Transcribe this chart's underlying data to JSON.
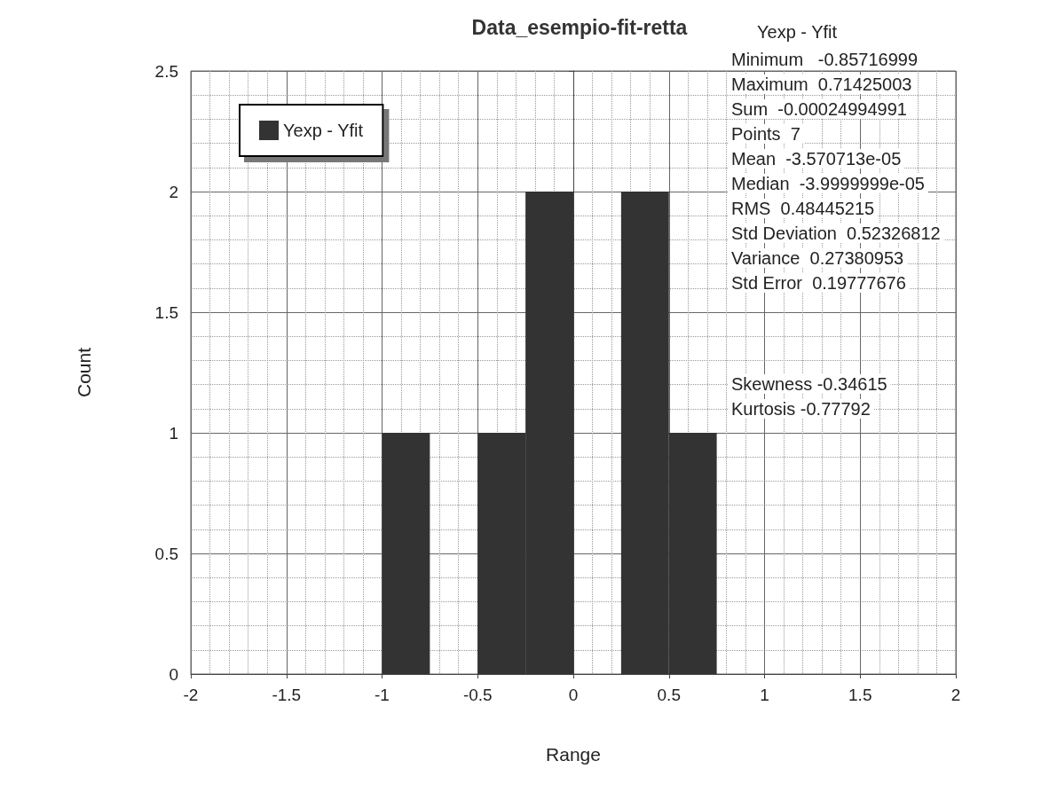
{
  "chart_data": {
    "type": "histogram",
    "title": "Data_esempio-fit-retta",
    "xlabel": "Range",
    "ylabel": "Count",
    "bins": [
      -2,
      -1.75,
      -1.5,
      -1.25,
      -1,
      -0.75,
      -0.5,
      -0.25,
      0,
      0.25,
      0.5,
      0.75,
      1,
      1.25,
      1.5,
      1.75,
      2
    ],
    "series": [
      {
        "name": "Yexp - Yfit",
        "color": "#333333",
        "values": [
          0,
          0,
          0,
          0,
          1,
          0,
          1,
          2,
          0,
          2,
          1,
          0,
          0,
          0,
          0,
          0
        ]
      }
    ],
    "xlim": [
      -2,
      2
    ],
    "xticks": [
      -2,
      -1.5,
      -1,
      -0.5,
      0,
      0.5,
      1,
      1.5,
      2
    ],
    "ylim": [
      0,
      2.5
    ],
    "yticks": [
      0,
      0.5,
      1,
      1.5,
      2,
      2.5
    ],
    "grid": true,
    "legend": "top left",
    "annotations": [
      "Yexp - Yfit",
      "Minimum   -0.85716999",
      "Maximum  0.71425003",
      "Sum  -0.00024994991",
      "Points  7",
      "Mean  -3.570713e-05",
      "Median  -3.9999999e-05",
      "RMS  0.48445215",
      "Std Deviation  0.52326812",
      "Variance  0.27380953",
      "Std Error  0.19777676",
      "Skewness -0.34615",
      "Kurtosis -0.77792"
    ]
  }
}
